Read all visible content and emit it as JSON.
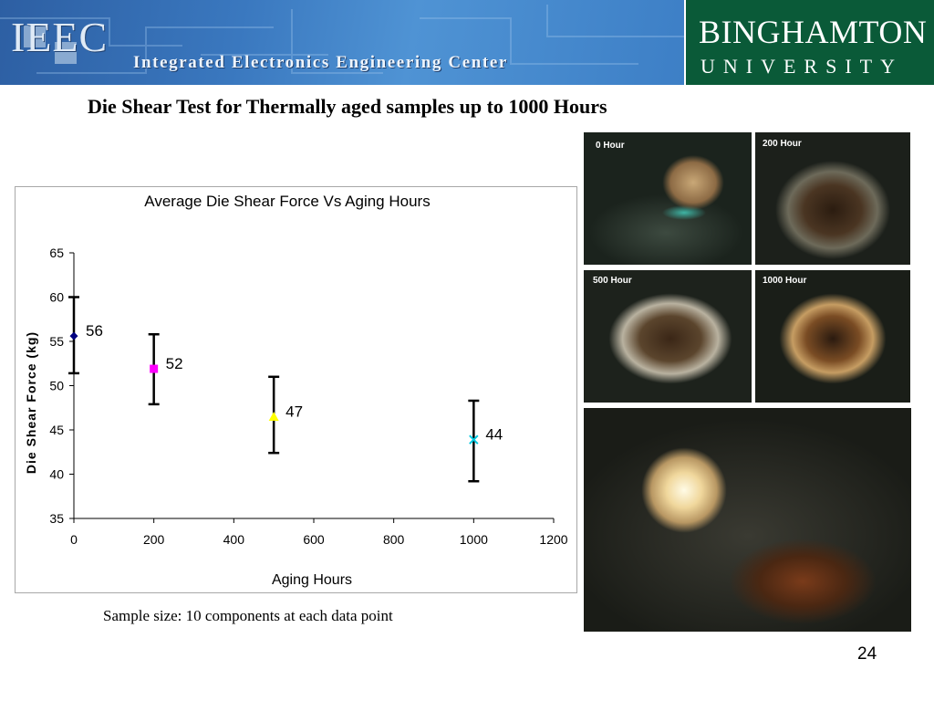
{
  "header": {
    "left_logo": "IEEC",
    "left_subtitle": "Integrated Electronics Engineering Center",
    "right_title": "BINGHAMTON",
    "right_subtitle": "UNIVERSITY"
  },
  "slide_title": "Die Shear Test for Thermally aged samples up to 1000 Hours",
  "caption": "Sample size: 10 components at each data point",
  "page_number": "24",
  "photos": [
    {
      "label": "0 Hour"
    },
    {
      "label": "200 Hour"
    },
    {
      "label": "500 Hour"
    },
    {
      "label": "1000 Hour"
    }
  ],
  "chart_data": {
    "type": "scatter",
    "title": "Average Die Shear Force Vs Aging Hours",
    "xlabel": "Aging Hours",
    "ylabel": "Die Shear Force (kg)",
    "xlim": [
      0,
      1200
    ],
    "ylim": [
      35,
      65
    ],
    "xticks": [
      0,
      200,
      400,
      600,
      800,
      1000,
      1200
    ],
    "yticks": [
      35,
      40,
      45,
      50,
      55,
      60,
      65
    ],
    "grid": false,
    "legend": "none",
    "points": [
      {
        "x": 0,
        "y": 55.6,
        "label": "56",
        "err_low": 51.4,
        "err_high": 60.0,
        "color": "#000080",
        "marker": "diamond"
      },
      {
        "x": 200,
        "y": 51.9,
        "label": "52",
        "err_low": 47.9,
        "err_high": 55.8,
        "color": "#ff00ff",
        "marker": "square"
      },
      {
        "x": 500,
        "y": 46.5,
        "label": "47",
        "err_low": 42.4,
        "err_high": 51.0,
        "color": "#ffff00",
        "marker": "triangle"
      },
      {
        "x": 1000,
        "y": 43.9,
        "label": "44",
        "err_low": 39.2,
        "err_high": 48.3,
        "color": "#00c8e0",
        "marker": "x"
      }
    ]
  }
}
